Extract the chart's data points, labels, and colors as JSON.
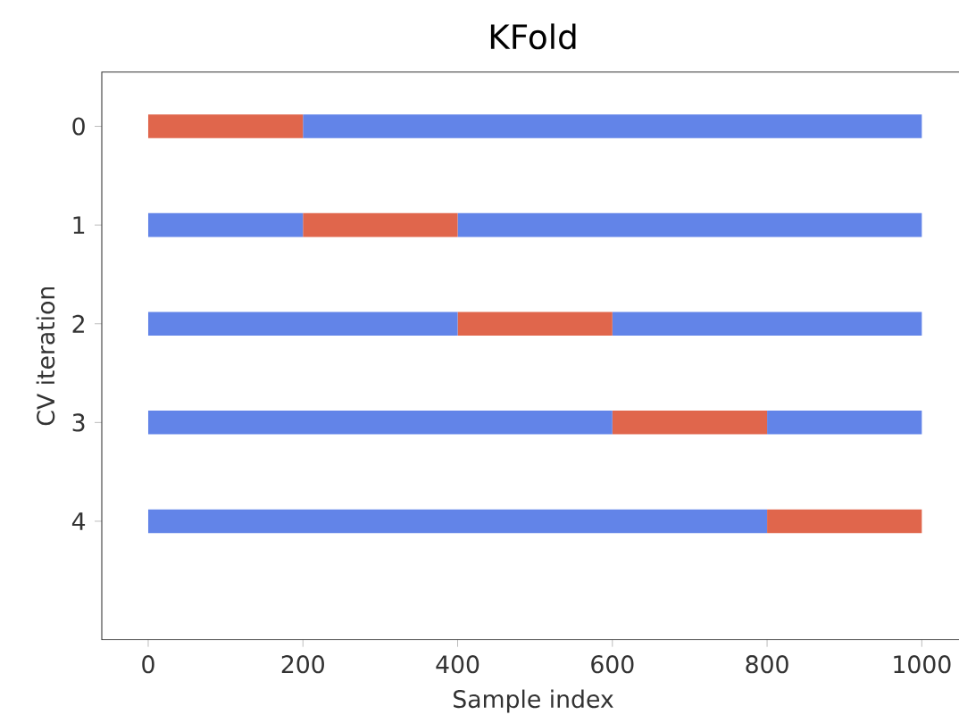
{
  "chart_data": {
    "type": "bar",
    "orientation": "horizontal",
    "stacked": true,
    "title": "KFold",
    "xlabel": "Sample index",
    "ylabel": "CV iteration",
    "categories": [
      "0",
      "1",
      "2",
      "3",
      "4"
    ],
    "series": [
      {
        "color": "#6284e8",
        "values": [
          0,
          200,
          400,
          600,
          800
        ]
      },
      {
        "color": "#e0664c",
        "values": [
          200,
          200,
          200,
          200,
          200
        ]
      },
      {
        "color": "#6284e8",
        "values": [
          800,
          600,
          400,
          200,
          0
        ]
      }
    ],
    "xlim": [
      -60,
      1055
    ],
    "xticks": [
      0,
      200,
      400,
      600,
      800,
      1000
    ]
  }
}
